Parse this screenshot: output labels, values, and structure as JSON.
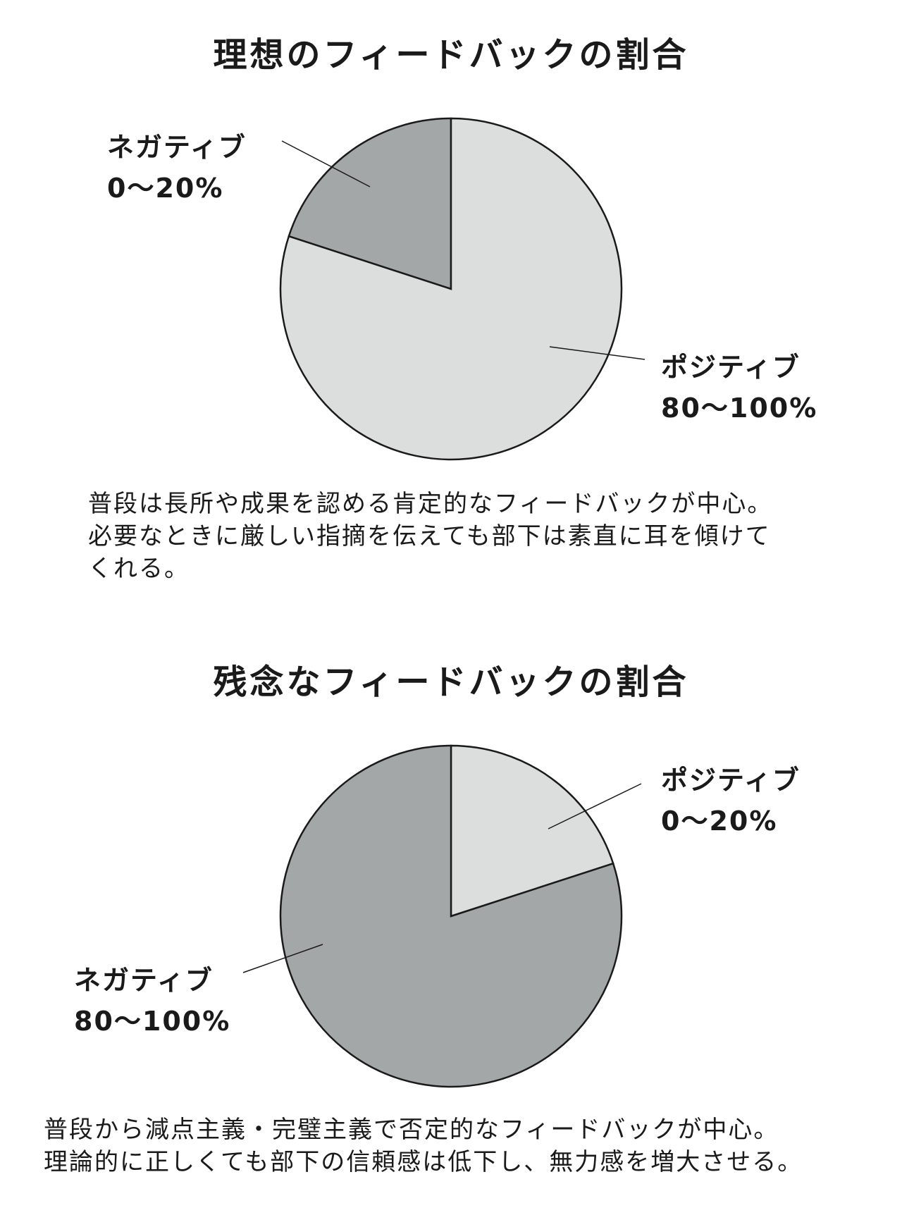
{
  "chart_data": [
    {
      "type": "pie",
      "title": "理想のフィードバックの割合",
      "slices": [
        {
          "label": "ネガティブ",
          "value_label": "0〜20%",
          "value": 20,
          "color": "#a4a7a8"
        },
        {
          "label": "ポジティブ",
          "value_label": "80〜100%",
          "value": 80,
          "color": "#dcdddd"
        }
      ],
      "caption": [
        "普段は長所や成果を認める肯定的なフィードバックが中心。",
        "必要なときに厳しい指摘を伝えても部下は素直に耳を傾けて",
        "くれる。"
      ]
    },
    {
      "type": "pie",
      "title": "残念なフィードバックの割合",
      "slices": [
        {
          "label": "ポジティブ",
          "value_label": "0〜20%",
          "value": 20,
          "color": "#dcdddd"
        },
        {
          "label": "ネガティブ",
          "value_label": "80〜100%",
          "value": 80,
          "color": "#a4a7a8"
        }
      ],
      "caption": [
        "普段から減点主義・完璧主義で否定的なフィードバックが中心。",
        "理論的に正しくても部下の信頼感は低下し、無力感を増大させる。"
      ]
    }
  ]
}
